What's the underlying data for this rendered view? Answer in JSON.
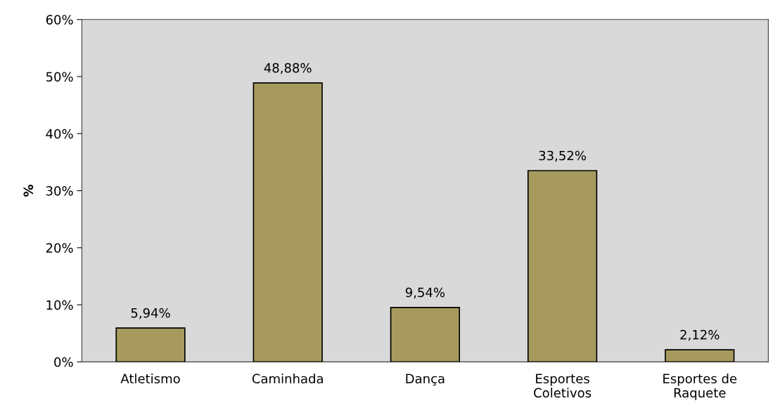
{
  "chart_data": {
    "type": "bar",
    "categories": [
      "Atletismo",
      "Caminhada",
      "Dança",
      "Esportes\nColetivos",
      "Esportes de\nRaquete"
    ],
    "values": [
      5.94,
      48.88,
      9.54,
      33.52,
      2.12
    ],
    "value_labels": [
      "5,94%",
      "48,88%",
      "9,54%",
      "33,52%",
      "2,12%"
    ],
    "color": "#a69a5e",
    "ylabel": "%",
    "ylim": [
      0,
      60
    ],
    "yticks": [
      {
        "value": 0,
        "label": "0%"
      },
      {
        "value": 10,
        "label": "10%"
      },
      {
        "value": 20,
        "label": "20%"
      },
      {
        "value": 30,
        "label": "30%"
      },
      {
        "value": 40,
        "label": "40%"
      },
      {
        "value": 50,
        "label": "50%"
      },
      {
        "value": 60,
        "label": "60%"
      }
    ],
    "grid": false
  }
}
